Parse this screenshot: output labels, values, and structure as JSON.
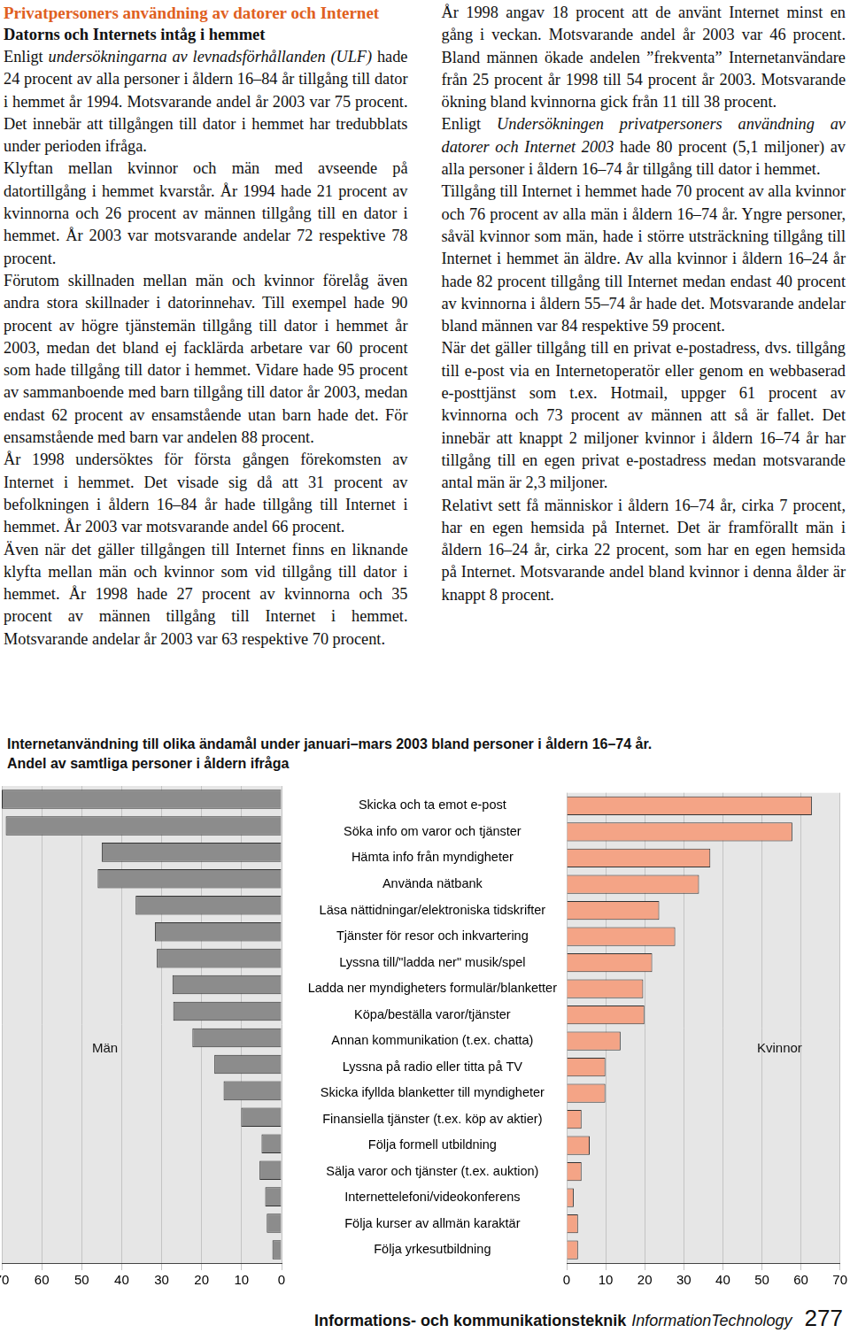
{
  "text": {
    "title": "Privatpersoners användning av datorer och Internet",
    "subtitle": "Datorns och Internets intåg i hemmet",
    "paragraphs": [
      [
        {
          "text": "Enligt "
        },
        {
          "text": "undersökningarna av levnadsförhållanden (ULF)",
          "italic": true
        },
        {
          "text": " hade 24 procent av alla personer i åldern 16–84 år tillgång till dator i hemmet år 1994. Motsvarande andel år 2003 var 75 procent. Det innebär att tillgången till dator i hemmet har tredubblats under perioden ifråga."
        }
      ],
      [
        {
          "text": "Klyftan mellan kvinnor och män med avseende på datortillgång i hemmet kvarstår. År 1994 hade 21 procent av kvinnorna och 26 procent av männen tillgång till en dator i hemmet. År 2003 var motsvarande andelar 72 respektive 78 procent."
        }
      ],
      [
        {
          "text": "Förutom skillnaden mellan män och kvinnor förelåg även andra stora skillnader i datorinnehav. Till exempel hade 90 procent av högre tjänstemän tillgång till dator i hemmet år 2003, medan det bland ej facklärda arbetare var 60 procent som hade tillgång till dator i hemmet. Vidare hade 95 procent av sammanboende med barn tillgång till dator år 2003, medan endast 62 procent av ensamstående utan barn hade det. För ensamstående med barn var andelen 88 procent."
        }
      ],
      [
        {
          "text": "År 1998 undersöktes för första gången förekomsten av Internet i hemmet. Det visade sig då att 31 procent av befolkningen i åldern 16–84 år hade tillgång till Internet i hemmet. År 2003 var motsvarande andel 66 procent."
        }
      ],
      [
        {
          "text": "Även när det gäller tillgången till Internet finns en liknande klyfta mellan män och kvinnor som vid tillgång till dator i hemmet. År 1998 hade 27 procent av kvinnorna och 35 procent av männen tillgång till Internet i hemmet. Motsvarande andelar år 2003 var 63 respektive 70 procent."
        }
      ],
      [
        {
          "text": "År 1998 angav 18 procent att de använt Internet minst en gång i veckan. Motsvarande andel år 2003 var 46 procent. Bland männen ökade andelen ”frekventa” Internetanvändare från 25 procent år 1998 till 54 procent år 2003. Motsvarande ökning bland kvinnorna gick från 11 till 38 procent."
        }
      ],
      [
        {
          "text": "Enligt "
        },
        {
          "text": "Undersökningen privatpersoners användning av datorer och Internet 2003",
          "italic": true
        },
        {
          "text": " hade 80 procent (5,1 miljoner) av alla personer i åldern 16–74 år tillgång till dator i hemmet."
        }
      ],
      [
        {
          "text": "Tillgång till Internet i hemmet hade 70 procent av alla kvinnor och 76 procent av alla män i åldern 16–74 år. Yngre personer, såväl kvinnor som män, hade i större utsträckning tillgång till Internet i hemmet än äldre. Av alla kvinnor i åldern 16–24 år hade 82 procent tillgång till Internet medan endast 40 procent av kvinnorna i åldern 55–74 år hade det. Motsvarande andelar bland männen var 84 respektive 59 procent."
        }
      ],
      [
        {
          "text": "När det gäller tillgång till en privat e-postadress, dvs. tillgång till e-post via en Internetoperatör eller genom en webbaserad e-posttjänst som t.ex. Hotmail, uppger 61 procent av kvinnorna och 73 procent av männen att så är fallet. Det innebär att knappt 2 miljoner kvinnor i åldern 16–74 år har tillgång till en egen privat e-postadress medan motsvarande antal män är 2,3 miljoner."
        }
      ],
      [
        {
          "text": "Relativt sett få människor i åldern 16–74 år, cirka 7 procent, har en egen hemsida på Internet. Det är framförallt män i åldern 16–24 år, cirka 22 procent, som har en egen hemsida på Internet. Motsvarande andel bland kvinnor i denna ålder är knappt 8 procent."
        }
      ]
    ]
  },
  "chart_data": {
    "type": "bar",
    "orientation": "horizontal",
    "title": "Internetanvändning till olika ändamål under januari–mars 2003 bland personer i åldern 16–74 år.",
    "subtitle": "Andel av samtliga personer i åldern ifråga",
    "categories": [
      "Skicka och ta emot e-post",
      "Söka info om varor och tjänster",
      "Hämta info från myndigheter",
      "Använda nätbank",
      "Läsa nättidningar/elektroniska tidskrifter",
      "Tjänster för resor och inkvartering",
      "Lyssna till/\"ladda ner\" musik/spel",
      "Ladda ner myndigheters formulär/blanketter",
      "Köpa/beställa varor/tjänster",
      "Annan kommunikation (t.ex. chatta)",
      "Lyssna på radio eller titta på TV",
      "Skicka ifyllda blanketter till myndigheter",
      "Finansiella tjänster (t.ex. köp av aktier)",
      "Följa formell utbildning",
      "Sälja varor och tjänster (t.ex. auktion)",
      "Internettelefoni/videokonferens",
      "Följa kurser av allmän karaktär",
      "Följa yrkesutbildning"
    ],
    "series": [
      {
        "name": "Män",
        "color": "#8c8c8c",
        "values": [
          70,
          69,
          45,
          46,
          36.5,
          31.7,
          31.2,
          27.3,
          27.1,
          22.3,
          16.8,
          14.5,
          10.1,
          5,
          5.5,
          4.1,
          3.7,
          2.3
        ]
      },
      {
        "name": "Kvinnor",
        "color": "#f4a486",
        "values": [
          62.8,
          57.8,
          36.8,
          33.9,
          23.7,
          27.8,
          21.9,
          19.6,
          19.9,
          13.8,
          9.9,
          9.9,
          3.8,
          5.9,
          3.8,
          1.8,
          2.9,
          2.9
        ]
      }
    ],
    "xlim": [
      0,
      70
    ],
    "xticks": [
      0,
      10,
      20,
      30,
      40,
      50,
      60,
      70
    ],
    "grid": true
  },
  "footer": {
    "section": "Informations- och kommunikationsteknik",
    "section_en": "InformationTechnology",
    "page": 277
  }
}
